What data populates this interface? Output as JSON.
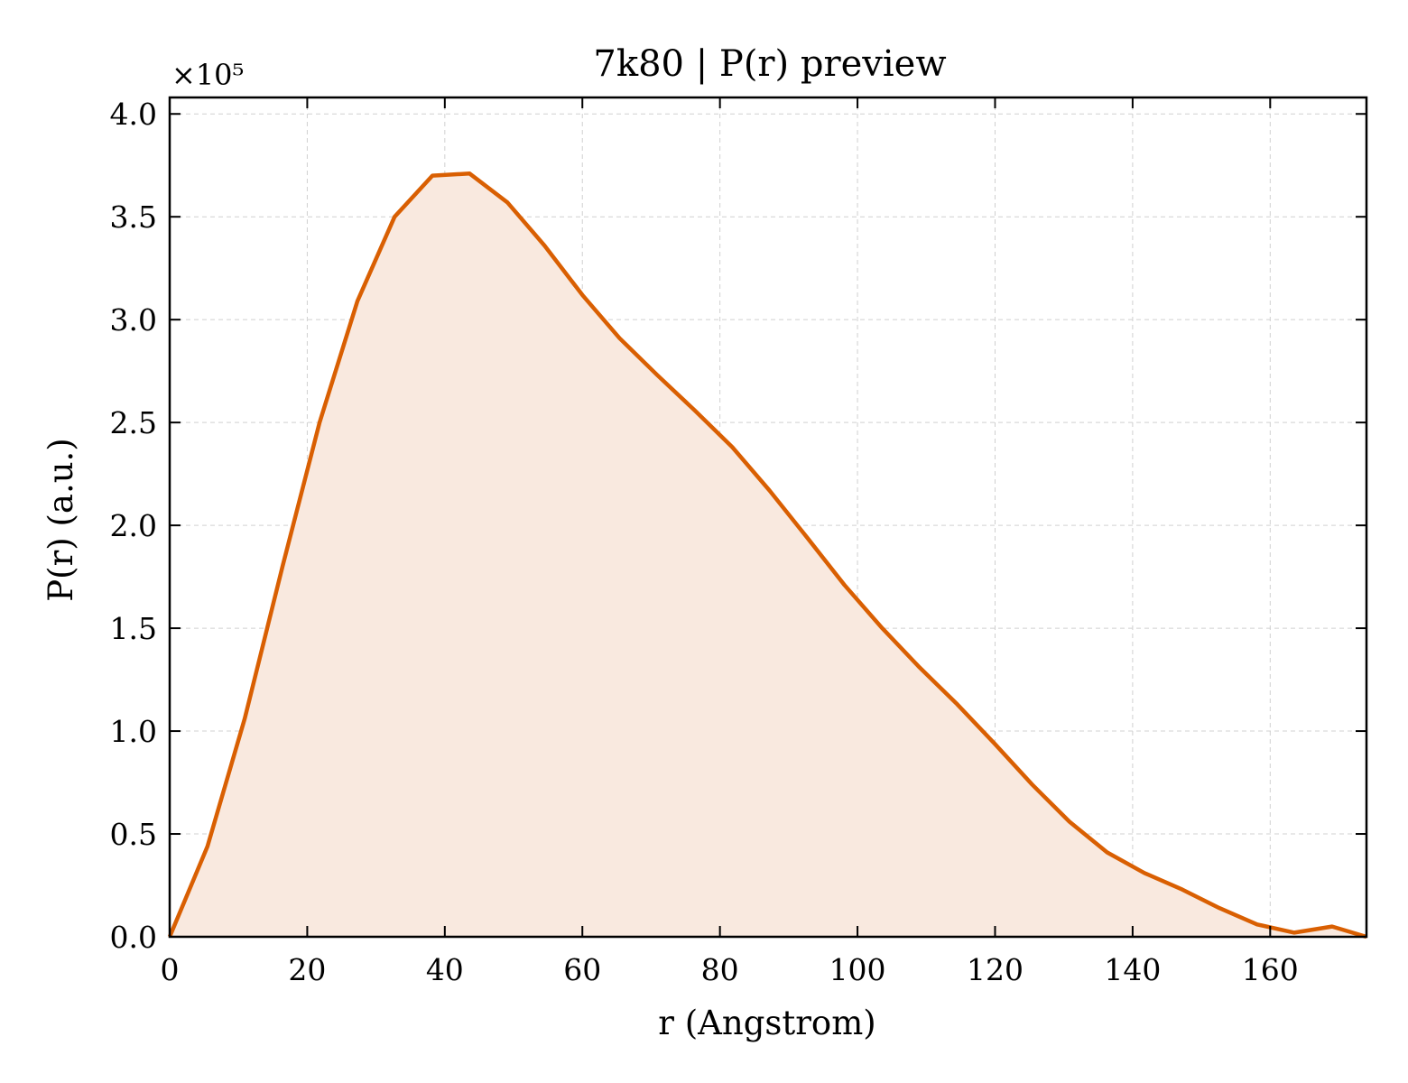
{
  "chart_data": {
    "type": "area",
    "title": "7k80 | P(r) preview",
    "xlabel": "r (Angstrom)",
    "ylabel": "P(r) (a.u.)",
    "y_multiplier_label": "×10⁵",
    "xlim": [
      0,
      174
    ],
    "ylim": [
      0,
      4.08
    ],
    "x_ticks": [
      0,
      20,
      40,
      60,
      80,
      100,
      120,
      140,
      160
    ],
    "y_ticks": [
      0,
      0.5,
      1.0,
      1.5,
      2.0,
      2.5,
      3.0,
      3.5,
      4.0
    ],
    "x_tick_labels": [
      "0",
      "20",
      "40",
      "60",
      "80",
      "100",
      "120",
      "140",
      "160"
    ],
    "y_tick_labels": [
      "0.0",
      "0.5",
      "1.0",
      "1.5",
      "2.0",
      "2.5",
      "3.0",
      "3.5",
      "4.0"
    ],
    "grid": true,
    "line_color": "#d95f02",
    "fill_color": "#f9e9df",
    "series": [
      {
        "x": [
          0,
          5.5,
          10.9,
          16.4,
          21.8,
          27.3,
          32.7,
          38.2,
          43.6,
          49.1,
          54.5,
          60.0,
          65.4,
          70.9,
          76.3,
          81.8,
          87.2,
          92.7,
          98.1,
          103.6,
          109.0,
          114.5,
          119.9,
          125.4,
          130.8,
          136.3,
          141.7,
          147.2,
          152.6,
          158.1,
          163.5,
          169.0,
          174.0
        ],
        "values": [
          0,
          0.44,
          1.06,
          1.8,
          2.5,
          3.09,
          3.5,
          3.7,
          3.71,
          3.57,
          3.36,
          3.12,
          2.91,
          2.73,
          2.56,
          2.38,
          2.17,
          1.94,
          1.71,
          1.5,
          1.31,
          1.13,
          0.94,
          0.74,
          0.56,
          0.41,
          0.31,
          0.23,
          0.14,
          0.06,
          0.02,
          0.05,
          0.0
        ]
      }
    ]
  }
}
